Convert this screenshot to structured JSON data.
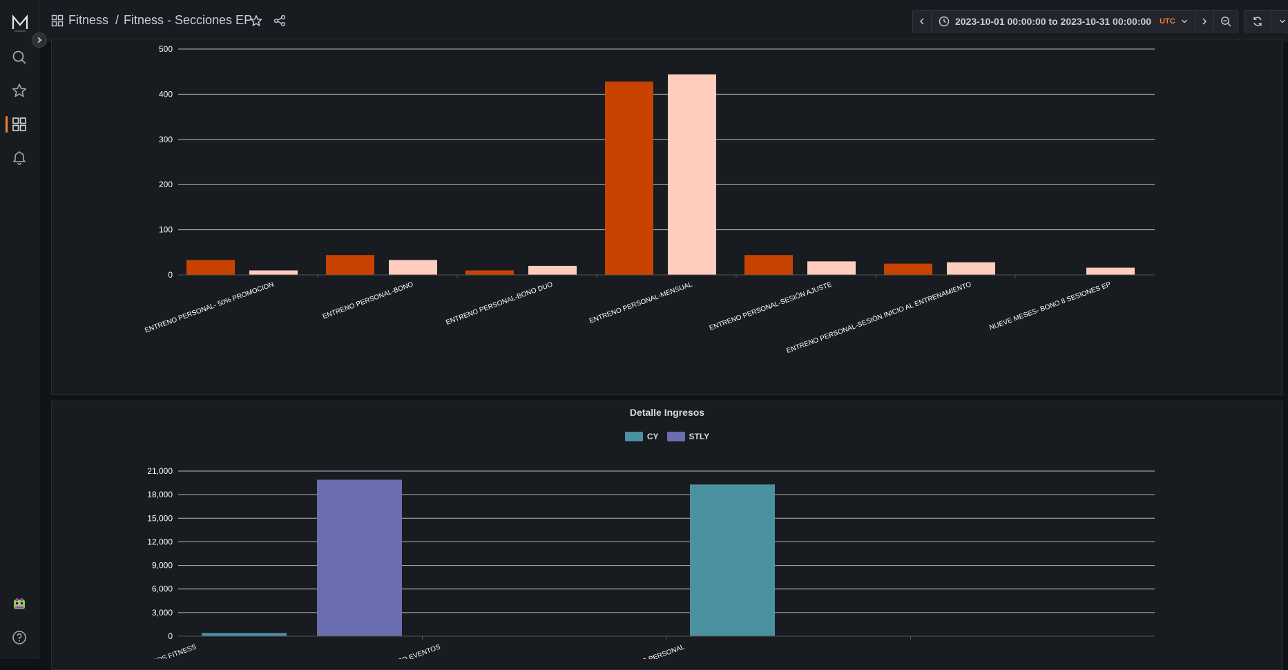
{
  "header": {
    "section": "Fitness",
    "separator": "/",
    "dashboard": "Fitness - Secciones EP"
  },
  "time_picker": {
    "range": "2023-10-01 00:00:00 to 2023-10-31 00:00:00",
    "timezone": "UTC"
  },
  "colors": {
    "accent": "#ff7d33",
    "cy_top": "#c84300",
    "stly_top": "#ffcdbd",
    "cy_bottom": "#4a91a1",
    "stly_bottom": "#6b6eae"
  },
  "icons": {
    "sidebar": [
      "logo-icon",
      "search-icon",
      "star-icon",
      "dashboards-icon",
      "bell-icon",
      "user-avatar-icon",
      "help-icon"
    ],
    "topbar": [
      "dashboard-grid-icon",
      "star-icon",
      "share-icon",
      "chevron-left-icon",
      "clock-icon",
      "chevron-down-icon",
      "chevron-right-icon",
      "zoom-out-icon",
      "refresh-icon",
      "tv-icon"
    ]
  },
  "panels": {
    "detalle_ingresos": {
      "title": "Detalle Ingresos",
      "legend": [
        "CY",
        "STLY"
      ]
    }
  },
  "chart_data": [
    {
      "type": "bar",
      "categories": [
        "ENTRENO PERSONAL- 50% PROMOCION",
        "ENTRENO PERSONAL-BONO",
        "ENTRENO PERSONAL-BONO DUO",
        "ENTRENO PERSONAL-MENSUAL",
        "ENTRENO PERSONAL-SESIÓN AJUSTE",
        "ENTRENO PERSONAL-SESIÓN INICIO AL ENTRENAMIENTO",
        "NUEVE MESES- BONO 8 SESIONES EP"
      ],
      "series": [
        {
          "values": [
            33,
            44,
            10,
            428,
            44,
            25,
            0
          ]
        },
        {
          "values": [
            10,
            33,
            20,
            444,
            30,
            28,
            16
          ]
        }
      ],
      "ylim": [
        0,
        500
      ],
      "yticks": [
        "0",
        "100",
        "200",
        "300",
        "400",
        "500"
      ],
      "grid": true
    },
    {
      "type": "bar",
      "title": "Detalle Ingresos",
      "categories": [
        "CURSOS FITNESS",
        "INGRESO EVENTOS",
        "ENTRENAMIENTO PERSONAL",
        ""
      ],
      "series": [
        {
          "name": "CY",
          "values": [
            400,
            0,
            19300,
            0
          ]
        },
        {
          "name": "STLY",
          "values": [
            19900,
            0,
            0,
            0
          ]
        }
      ],
      "ylim": [
        0,
        21000
      ],
      "yticks": [
        "0",
        "3,000",
        "6,000",
        "9,000",
        "12,000",
        "15,000",
        "18,000",
        "21,000"
      ],
      "legend": "top-center",
      "grid": true
    }
  ]
}
